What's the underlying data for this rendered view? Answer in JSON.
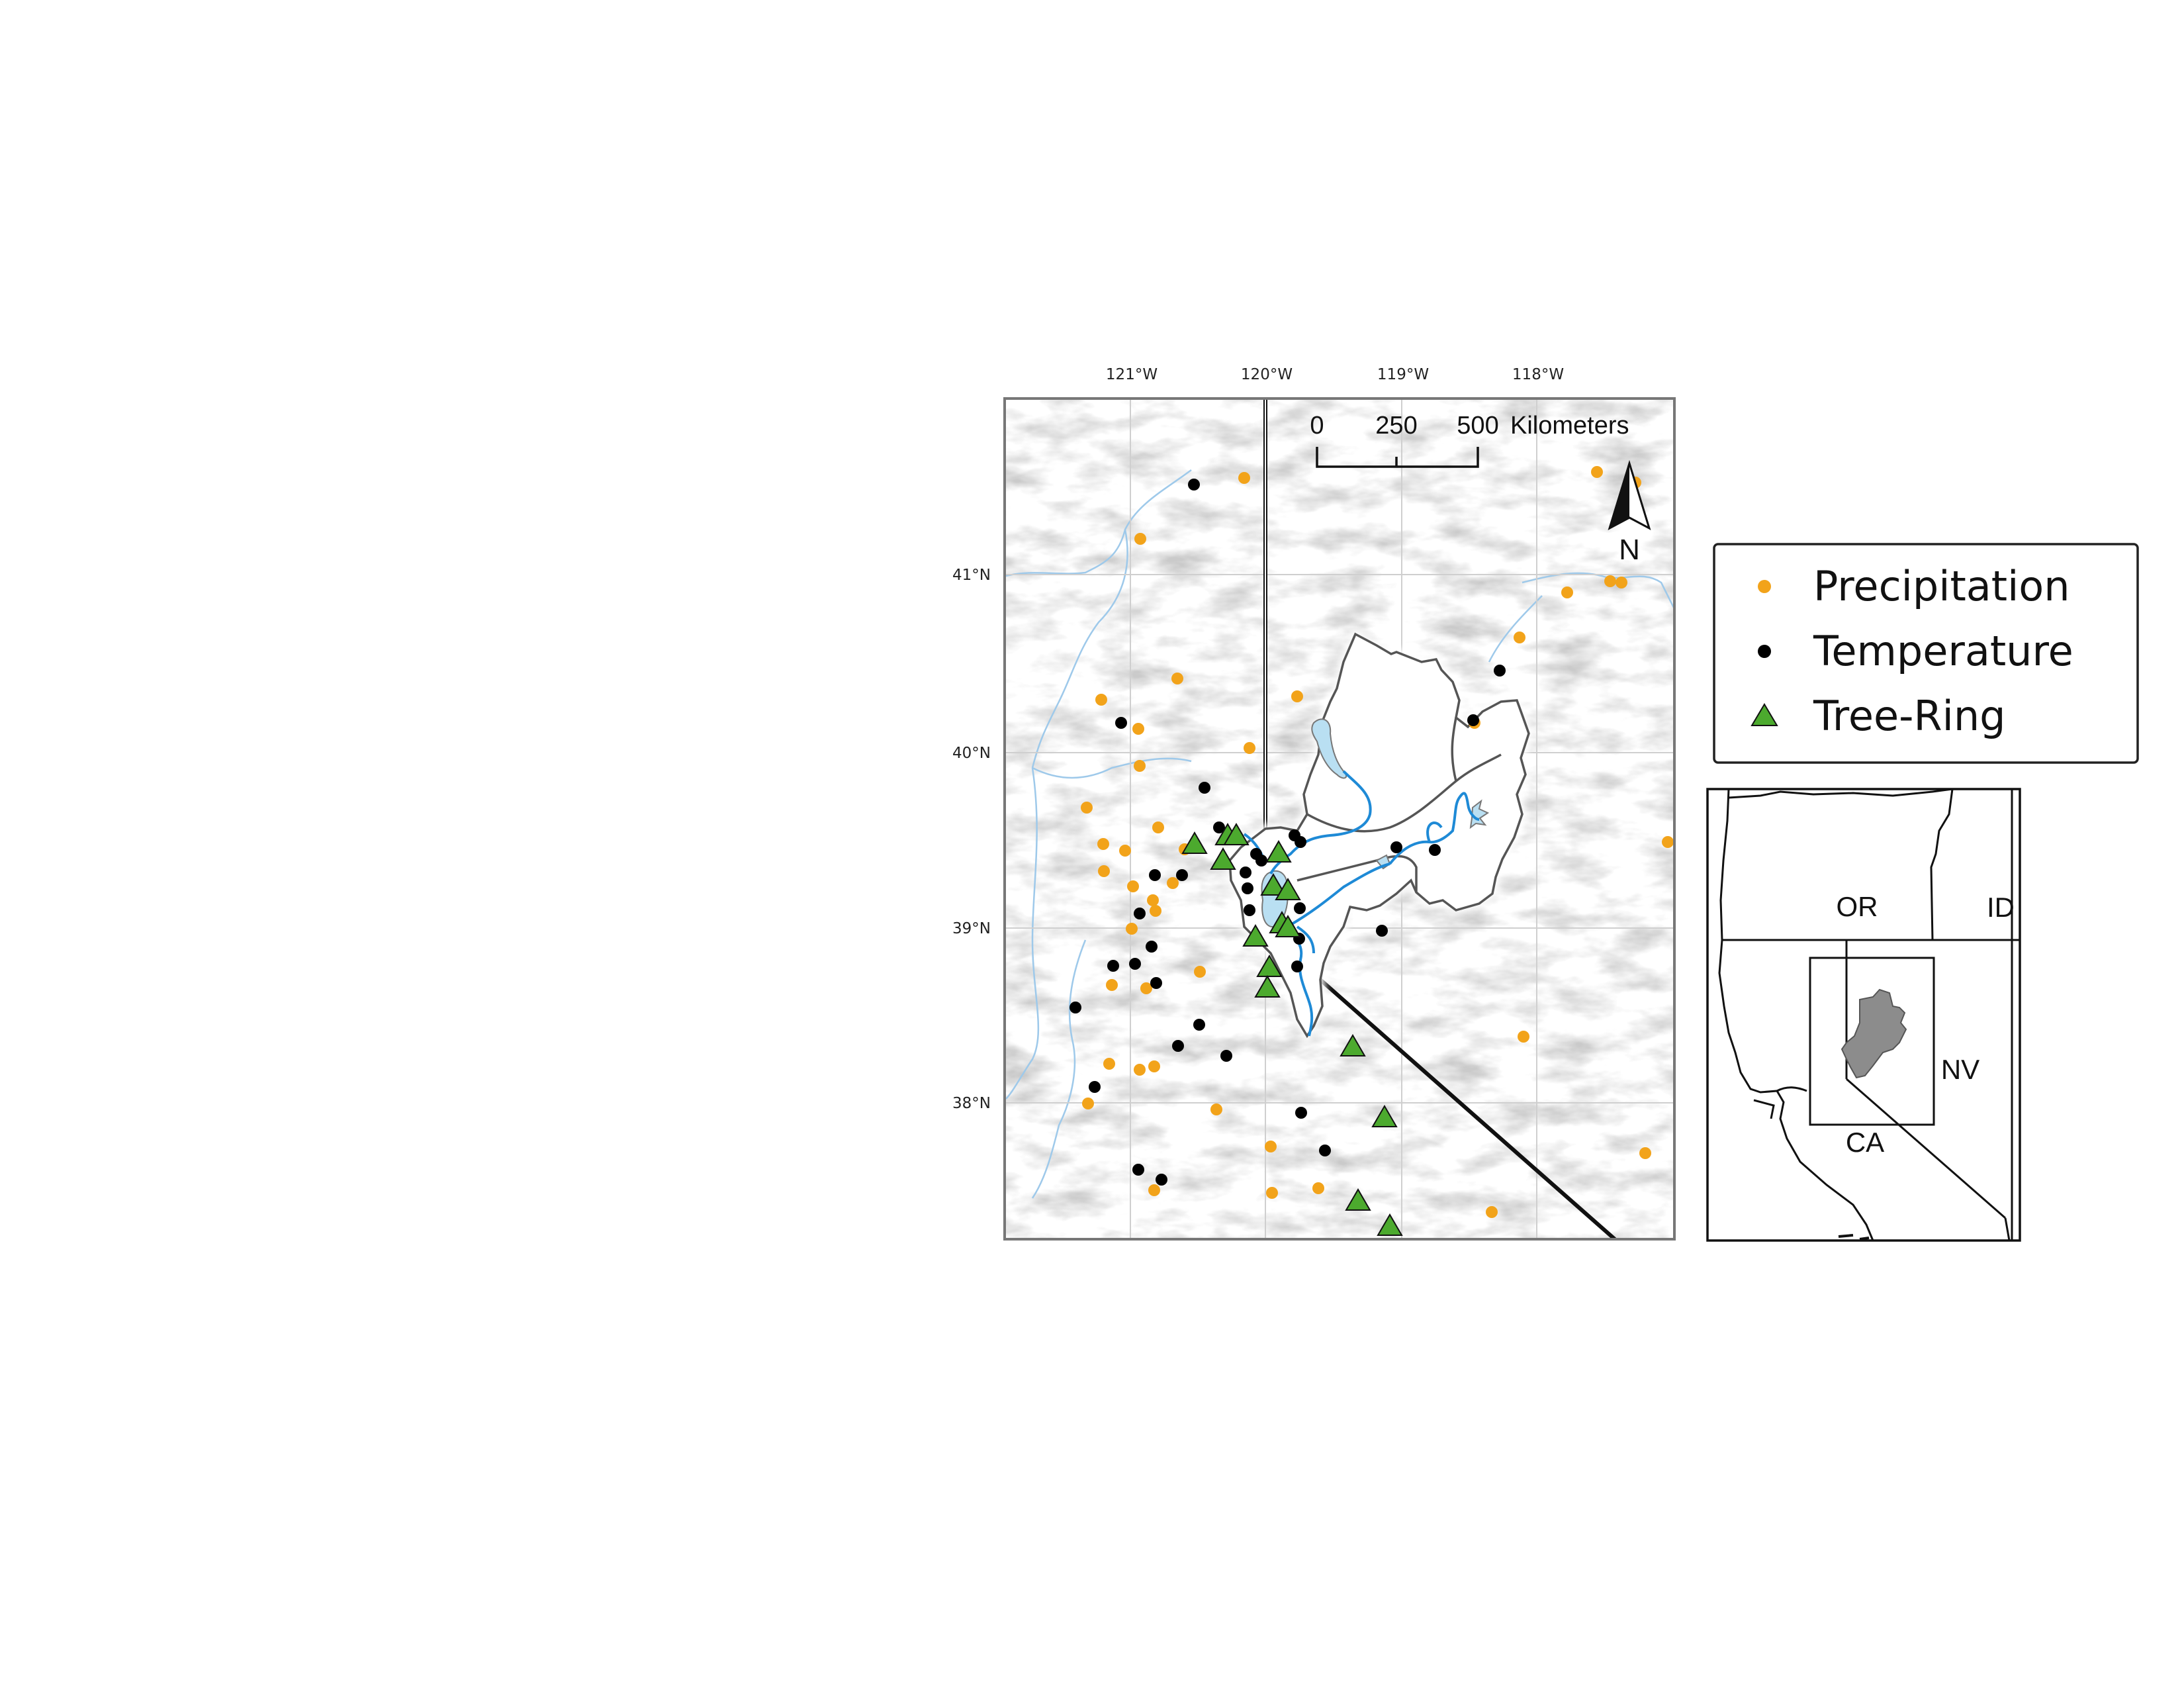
{
  "map": {
    "lon_labels": [
      "121°W",
      "120°W",
      "119°W",
      "118°W"
    ],
    "lat_labels": [
      "41°N",
      "40°N",
      "39°N",
      "38°N"
    ],
    "scale_bar": {
      "ticks": [
        "0",
        "250",
        "500"
      ],
      "unit": "Kilometers"
    },
    "north_arrow_label": "N"
  },
  "legend": {
    "items": [
      {
        "label": "Precipitation",
        "symbol": "circle",
        "color": "#f2a31a"
      },
      {
        "label": "Temperature",
        "symbol": "circle",
        "color": "#000000"
      },
      {
        "label": "Tree-Ring",
        "symbol": "triangle",
        "color": "#4caa2e"
      }
    ]
  },
  "inset": {
    "labels": [
      "OR",
      "ID",
      "NV",
      "CA"
    ]
  },
  "colors": {
    "precipitation": "#f2a31a",
    "temperature": "#000000",
    "tree_ring": "#4caa2e",
    "river": "#1e8ad6",
    "lake": "#b9dff2",
    "basin_fill": "#ffffff",
    "basin_outline": "#555555",
    "inset_basin": "#8c8c8c"
  }
}
